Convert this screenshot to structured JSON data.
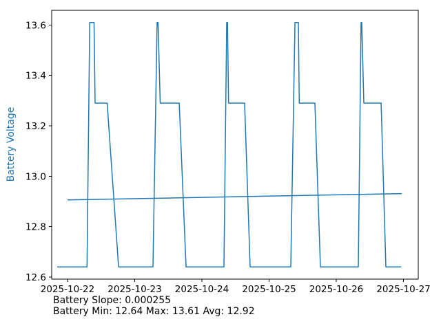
{
  "figure": {
    "background": "#ffffff"
  },
  "chart_data": {
    "type": "line",
    "title": "",
    "xlabel": "",
    "ylabel": "Battery Voltage",
    "ylabel_color": "#1f77b4",
    "line_color": "#1f77b4",
    "grid": false,
    "legend": "none",
    "x_unit": "days since 2025-10-22 00:00",
    "xlim": [
      -0.236,
      5.22
    ],
    "ylim": [
      12.5915,
      13.6585
    ],
    "x_tick_values": [
      0,
      1,
      2,
      3,
      4,
      5
    ],
    "x_tick_labels": [
      "2025-10-22",
      "2025-10-23",
      "2025-10-24",
      "2025-10-25",
      "2025-10-26",
      "2025-10-27"
    ],
    "y_tick_values": [
      12.6,
      12.8,
      13.0,
      13.2,
      13.4,
      13.6
    ],
    "y_tick_labels": [
      "12.6",
      "12.8",
      "13.0",
      "13.2",
      "13.4",
      "13.6"
    ],
    "series": [
      {
        "name": "battery-voltage-series",
        "points": [
          [
            -0.154,
            12.64
          ],
          [
            0.29,
            12.64
          ],
          [
            0.33,
            13.61
          ],
          [
            0.395,
            13.61
          ],
          [
            0.41,
            13.29
          ],
          [
            0.59,
            13.29
          ],
          [
            0.76,
            12.64
          ],
          [
            1.272,
            12.64
          ],
          [
            1.333,
            13.61
          ],
          [
            1.347,
            13.61
          ],
          [
            1.379,
            13.29
          ],
          [
            1.662,
            13.29
          ],
          [
            1.764,
            12.64
          ],
          [
            2.328,
            12.64
          ],
          [
            2.369,
            13.61
          ],
          [
            2.381,
            13.61
          ],
          [
            2.397,
            13.29
          ],
          [
            2.636,
            13.29
          ],
          [
            2.718,
            12.64
          ],
          [
            3.323,
            12.64
          ],
          [
            3.385,
            13.61
          ],
          [
            3.436,
            13.61
          ],
          [
            3.449,
            13.29
          ],
          [
            3.682,
            13.29
          ],
          [
            3.764,
            12.64
          ],
          [
            4.328,
            12.64
          ],
          [
            4.369,
            13.61
          ],
          [
            4.379,
            13.61
          ],
          [
            4.41,
            13.29
          ],
          [
            4.667,
            13.29
          ],
          [
            4.738,
            12.64
          ],
          [
            4.965,
            12.64
          ]
        ]
      },
      {
        "name": "trend-line-series",
        "points": [
          [
            0.0,
            12.906
          ],
          [
            4.975,
            12.931
          ]
        ]
      }
    ],
    "stats": {
      "slope": "0.000255",
      "min": "12.64",
      "max": "13.61",
      "avg": "12.92"
    }
  },
  "annotations": {
    "line1": "Battery Slope: 0.000255",
    "line2": "Battery Min: 12.64 Max: 13.61 Avg: 12.92"
  }
}
